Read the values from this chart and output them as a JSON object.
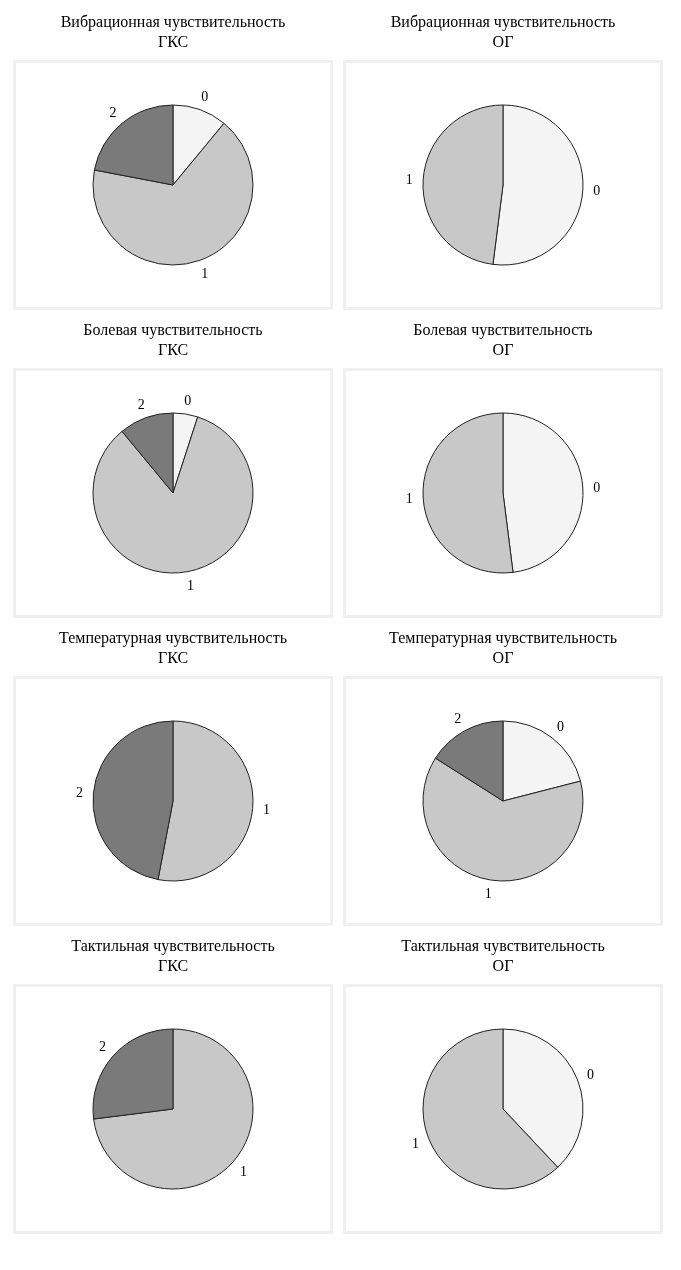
{
  "chart_data": [
    {
      "type": "pie",
      "title": "Вибрационная чувствительность\nГКС",
      "categories": [
        "0",
        "1",
        "2"
      ],
      "values": [
        11,
        67,
        22
      ],
      "colors": [
        "#f4f4f4",
        "#c8c8c8",
        "#7a7a7a"
      ]
    },
    {
      "type": "pie",
      "title": "Вибрационная чувствительность\nОГ",
      "categories": [
        "0",
        "1"
      ],
      "values": [
        52,
        48
      ],
      "colors": [
        "#f4f4f4",
        "#c8c8c8"
      ]
    },
    {
      "type": "pie",
      "title": "Болевая чувствительность\nГКС",
      "categories": [
        "0",
        "1",
        "2"
      ],
      "values": [
        5,
        84,
        11
      ],
      "colors": [
        "#f4f4f4",
        "#c8c8c8",
        "#7a7a7a"
      ]
    },
    {
      "type": "pie",
      "title": "Болевая чувствительность\nОГ",
      "categories": [
        "0",
        "1"
      ],
      "values": [
        48,
        52
      ],
      "colors": [
        "#f4f4f4",
        "#c8c8c8"
      ]
    },
    {
      "type": "pie",
      "title": "Температурная чувствительность\nГКС",
      "categories": [
        "1",
        "2"
      ],
      "values": [
        53,
        47
      ],
      "colors": [
        "#c8c8c8",
        "#7a7a7a"
      ]
    },
    {
      "type": "pie",
      "title": "Температурная чувствительность\nОГ",
      "categories": [
        "0",
        "1",
        "2"
      ],
      "values": [
        21,
        63,
        16
      ],
      "colors": [
        "#f4f4f4",
        "#c8c8c8",
        "#7a7a7a"
      ]
    },
    {
      "type": "pie",
      "title": "Тактильная чувствительность\nГКС",
      "categories": [
        "1",
        "2"
      ],
      "values": [
        73,
        27
      ],
      "colors": [
        "#c8c8c8",
        "#7a7a7a"
      ]
    },
    {
      "type": "pie",
      "title": "Тактильная чувствительность\nОГ",
      "categories": [
        "0",
        "1"
      ],
      "values": [
        38,
        62
      ],
      "colors": [
        "#f4f4f4",
        "#c8c8c8"
      ]
    }
  ]
}
